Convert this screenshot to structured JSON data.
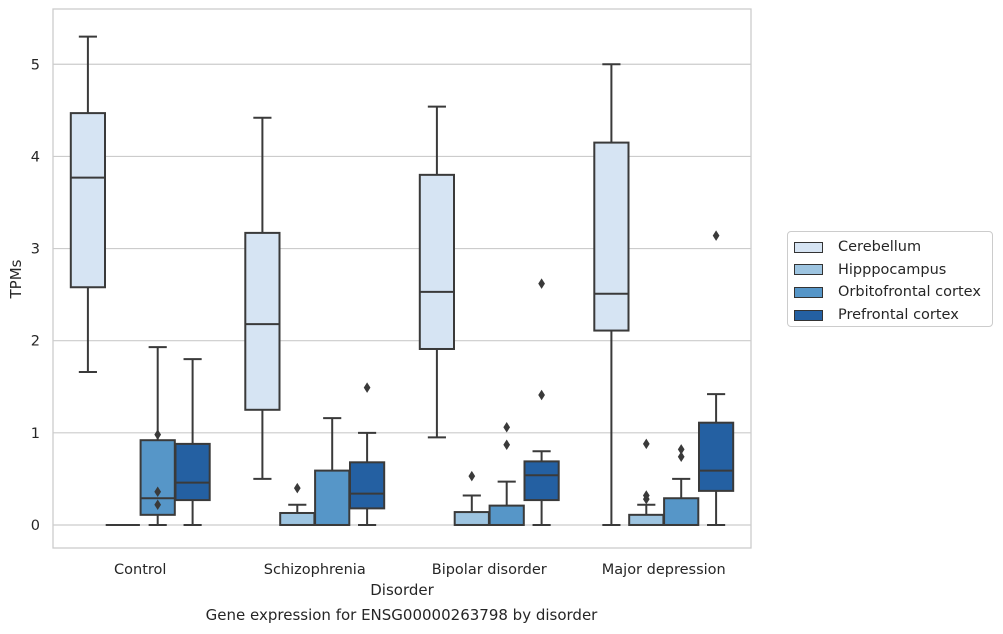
{
  "figure": {
    "caption": "Gene expression for ENSG00000263798 by disorder"
  },
  "chart_data": {
    "type": "box",
    "xlabel": "Disorder",
    "ylabel": "TPMs",
    "ylim": [
      -0.25,
      5.6
    ],
    "yticks": [
      0,
      1,
      2,
      3,
      4,
      5
    ],
    "grid": "horizontal",
    "legend_position": "right",
    "categories": [
      "Control",
      "Schizophrenia",
      "Bipolar disorder",
      "Major depression"
    ],
    "series": [
      {
        "name": "Cerebellum",
        "color": "#d6e4f3",
        "boxes": [
          {
            "whislo": 1.66,
            "q1": 2.58,
            "med": 3.77,
            "q3": 4.47,
            "whishi": 5.3,
            "fliers": []
          },
          {
            "whislo": 0.5,
            "q1": 1.25,
            "med": 2.18,
            "q3": 3.17,
            "whishi": 4.42,
            "fliers": []
          },
          {
            "whislo": 0.95,
            "q1": 1.91,
            "med": 2.53,
            "q3": 3.8,
            "whishi": 4.54,
            "fliers": []
          },
          {
            "whislo": 0.0,
            "q1": 2.11,
            "med": 2.51,
            "q3": 4.15,
            "whishi": 5.0,
            "fliers": []
          }
        ]
      },
      {
        "name": "Hipppocampus",
        "color": "#9dc4e0",
        "boxes": [
          {
            "whislo": 0.0,
            "q1": 0.0,
            "med": 0.0,
            "q3": 0.0,
            "whishi": 0.0,
            "fliers": []
          },
          {
            "whislo": 0.0,
            "q1": 0.0,
            "med": 0.0,
            "q3": 0.13,
            "whishi": 0.22,
            "fliers": [
              0.4
            ]
          },
          {
            "whislo": 0.0,
            "q1": 0.0,
            "med": 0.0,
            "q3": 0.14,
            "whishi": 0.32,
            "fliers": [
              0.53
            ]
          },
          {
            "whislo": 0.0,
            "q1": 0.0,
            "med": 0.0,
            "q3": 0.11,
            "whishi": 0.22,
            "fliers": [
              0.28,
              0.32,
              0.88
            ]
          }
        ]
      },
      {
        "name": "Orbitofrontal cortex",
        "color": "#5696c8",
        "boxes": [
          {
            "whislo": 0.0,
            "q1": 0.11,
            "med": 0.29,
            "q3": 0.92,
            "whishi": 1.93,
            "fliers": [
              0.22,
              0.36,
              0.98
            ]
          },
          {
            "whislo": 0.0,
            "q1": 0.0,
            "med": 0.0,
            "q3": 0.59,
            "whishi": 1.16,
            "fliers": []
          },
          {
            "whislo": 0.0,
            "q1": 0.0,
            "med": 0.0,
            "q3": 0.21,
            "whishi": 0.47,
            "fliers": [
              0.87,
              1.06
            ]
          },
          {
            "whislo": 0.0,
            "q1": 0.0,
            "med": 0.0,
            "q3": 0.29,
            "whishi": 0.5,
            "fliers": [
              0.74,
              0.82
            ]
          }
        ]
      },
      {
        "name": "Prefrontal cortex",
        "color": "#2460a2",
        "boxes": [
          {
            "whislo": 0.0,
            "q1": 0.27,
            "med": 0.46,
            "q3": 0.88,
            "whishi": 1.8,
            "fliers": []
          },
          {
            "whislo": 0.0,
            "q1": 0.18,
            "med": 0.34,
            "q3": 0.68,
            "whishi": 1.0,
            "fliers": [
              1.49
            ]
          },
          {
            "whislo": 0.0,
            "q1": 0.27,
            "med": 0.54,
            "q3": 0.69,
            "whishi": 0.8,
            "fliers": [
              1.41,
              2.62
            ]
          },
          {
            "whislo": 0.0,
            "q1": 0.37,
            "med": 0.59,
            "q3": 1.11,
            "whishi": 1.42,
            "fliers": [
              3.14
            ]
          }
        ]
      }
    ]
  }
}
